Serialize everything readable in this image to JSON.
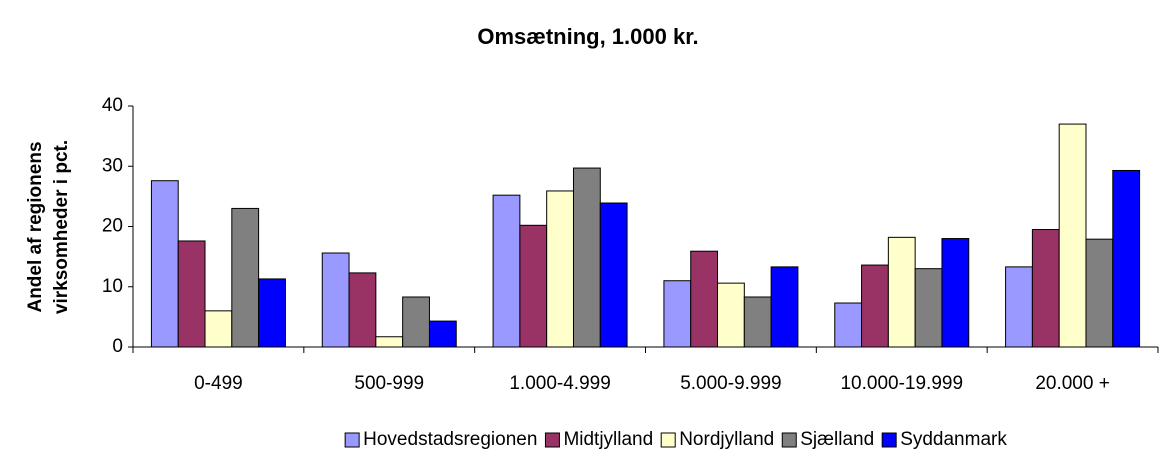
{
  "chart_data": {
    "type": "bar",
    "title": "Omsætning, 1.000 kr.",
    "y_label": [
      "Andel af regionens",
      "virksomheder i pct."
    ],
    "categories": [
      "0-499",
      "500-999",
      "1.000-4.999",
      "5.000-9.999",
      "10.000-19.999",
      "20.000 +"
    ],
    "series": [
      {
        "name": "Hovedstadsregionen",
        "color": "#9999ff",
        "values": [
          27.6,
          15.6,
          25.2,
          11,
          7.3,
          13.3
        ]
      },
      {
        "name": "Midtjylland",
        "color": "#993366",
        "values": [
          17.6,
          12.3,
          20.2,
          15.9,
          13.6,
          19.5
        ]
      },
      {
        "name": "Nordjylland",
        "color": "#ffffcc",
        "values": [
          6,
          1.7,
          25.9,
          10.6,
          18.2,
          37
        ]
      },
      {
        "name": "Sjælland",
        "color": "#808080",
        "values": [
          23,
          8.3,
          29.7,
          8.3,
          13,
          17.9
        ]
      },
      {
        "name": "Syddanmark",
        "color": "#0000ff",
        "values": [
          11.3,
          4.3,
          23.9,
          13.3,
          18,
          29.3
        ]
      }
    ],
    "ylim": [
      0,
      40
    ],
    "yticks": [
      0,
      10,
      20,
      30,
      40
    ],
    "legend": "bottom"
  }
}
